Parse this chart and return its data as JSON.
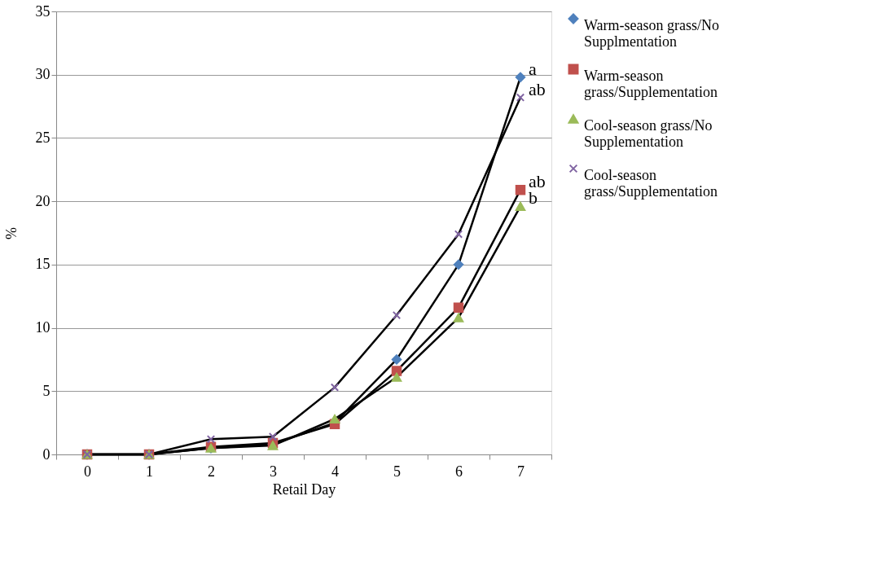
{
  "chart_data": {
    "type": "line",
    "xlabel": "Retail Day",
    "ylabel": "%",
    "categories": [
      "0",
      "1",
      "2",
      "3",
      "4",
      "5",
      "6",
      "7"
    ],
    "series": [
      {
        "name": "Warm-season grass/No Supplmentation",
        "color": "#4f81bd",
        "marker": "diamond",
        "values": [
          0,
          0,
          0.5,
          0.8,
          2.5,
          7.5,
          15,
          29.8
        ]
      },
      {
        "name": "Warm-season grass/Supplementation",
        "color": "#c0504d",
        "marker": "square",
        "values": [
          0,
          0,
          0.6,
          0.9,
          2.4,
          6.6,
          11.6,
          20.9
        ]
      },
      {
        "name": "Cool-season grass/No Supplementation",
        "color": "#9bbb59",
        "marker": "triangle",
        "values": [
          0,
          0,
          0.5,
          0.7,
          2.8,
          6.1,
          10.8,
          19.6
        ]
      },
      {
        "name": "Cool-season grass/Supplementation",
        "color": "#8064a2",
        "marker": "cross",
        "values": [
          0,
          0,
          1.2,
          1.4,
          5.3,
          11.0,
          17.4,
          28.2
        ]
      }
    ],
    "ylim": [
      0,
      35
    ],
    "yticks": [
      0,
      5,
      10,
      15,
      20,
      25,
      30,
      35
    ],
    "grid": "y",
    "legend": "right",
    "line_style": "solid",
    "annotations": [
      {
        "text": "a",
        "x": "7",
        "y": 29.8
      },
      {
        "text": "ab",
        "x": "7",
        "y": 28.2
      },
      {
        "text": "ab",
        "x": "7",
        "y": 20.9
      },
      {
        "text": "b",
        "x": "7",
        "y": 19.6
      }
    ]
  }
}
